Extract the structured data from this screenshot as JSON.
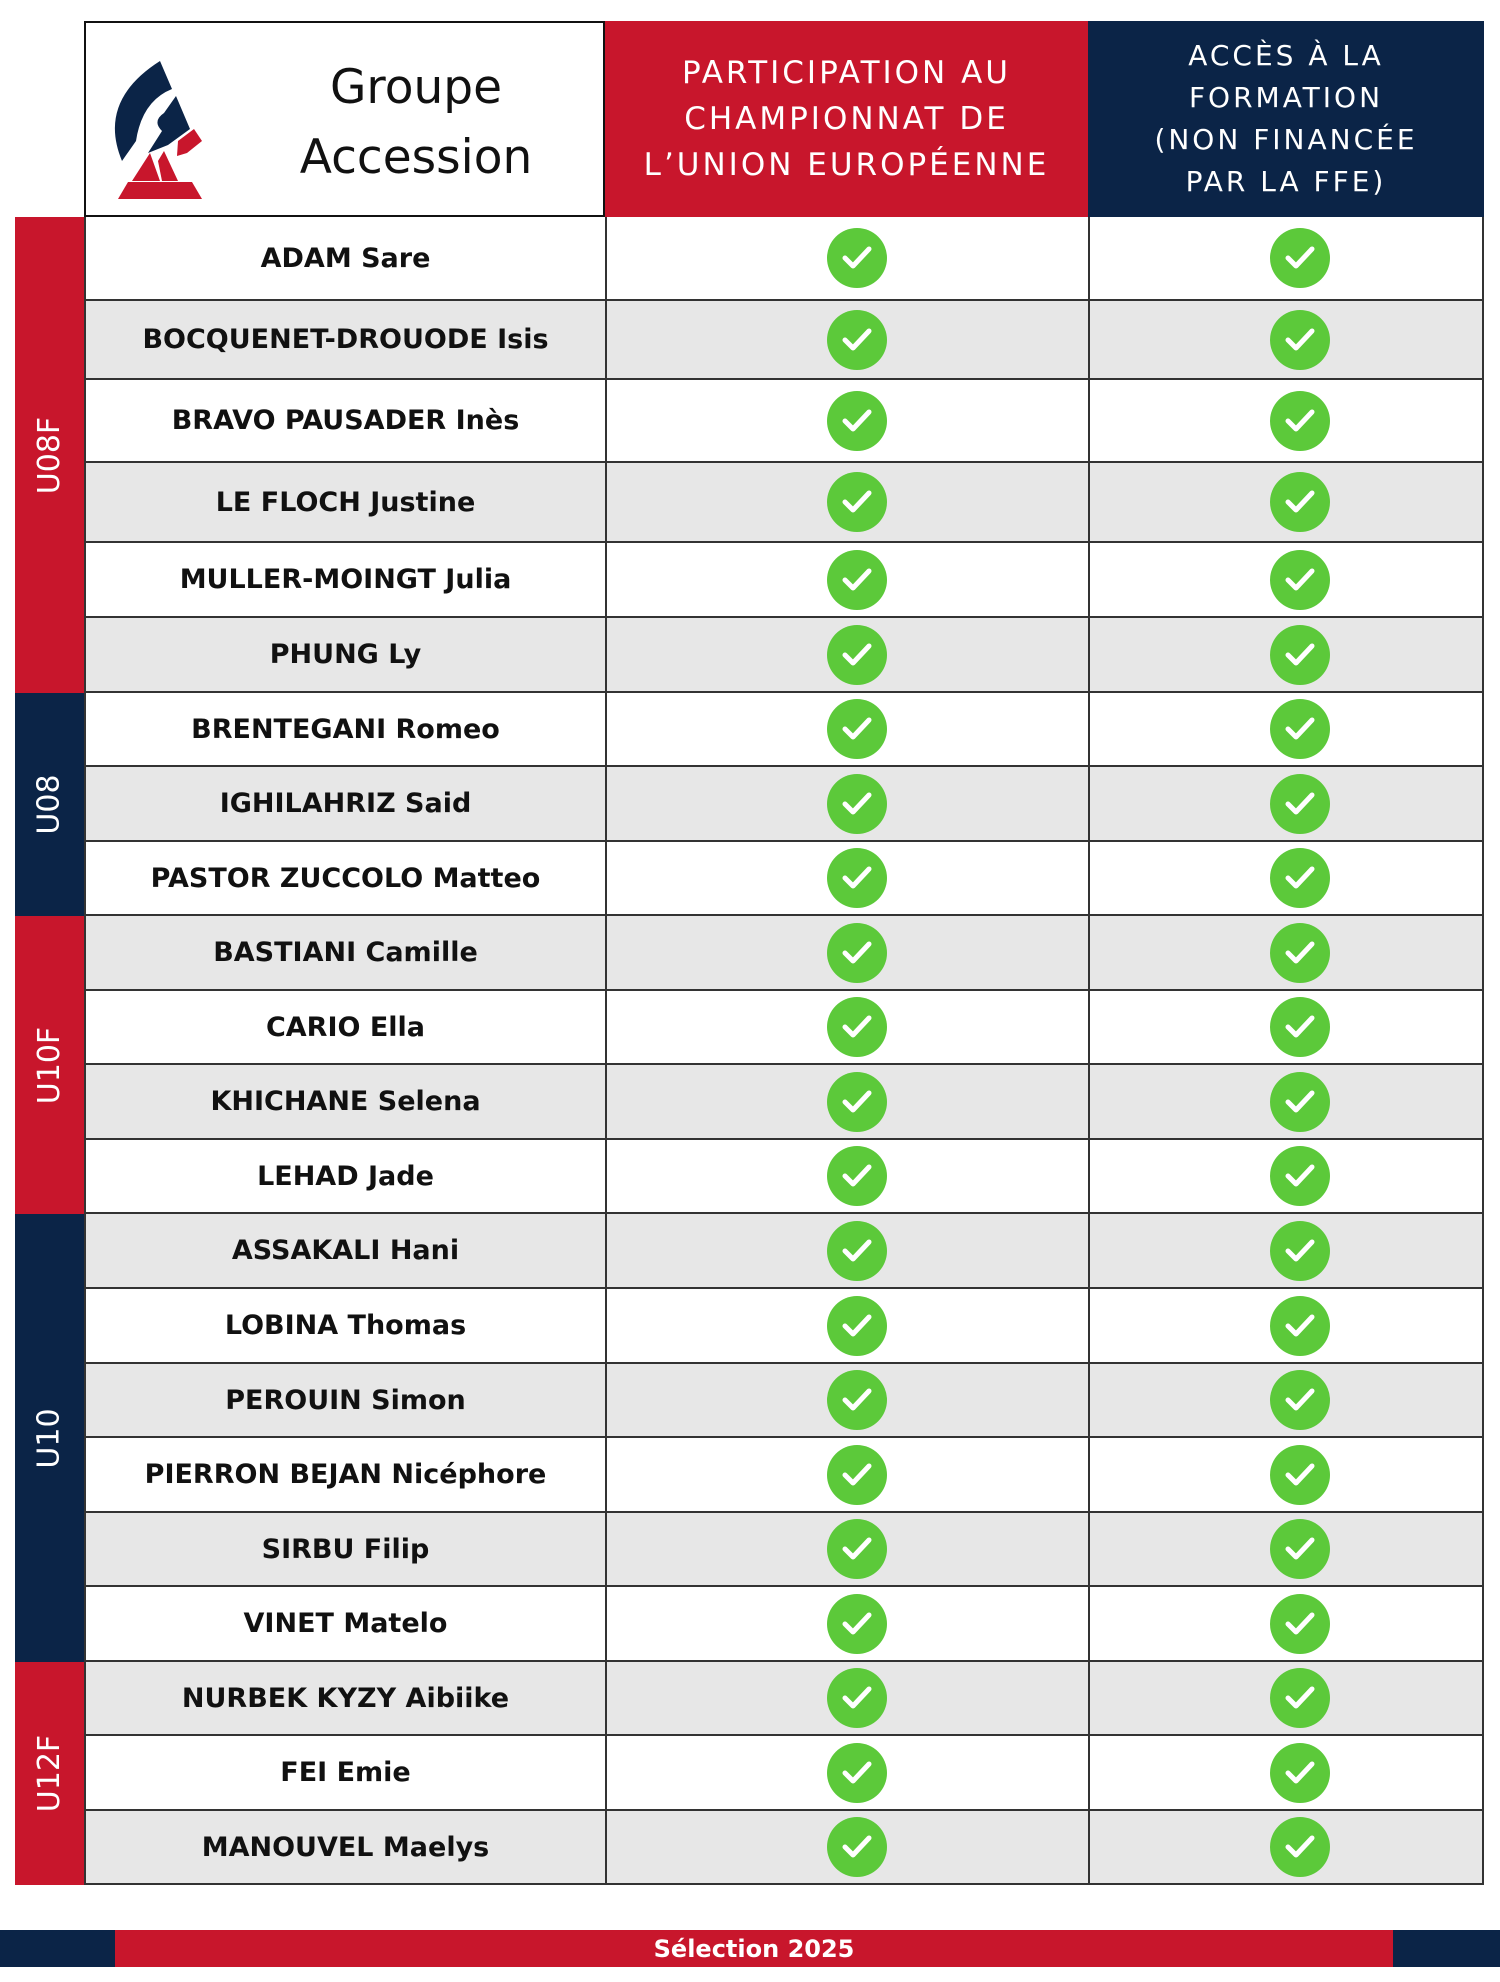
{
  "header": {
    "brand": "Groupe Accession",
    "brand_line1": "Groupe",
    "brand_line2": "Accession",
    "col1_title": "PARTICIPATION AU CHAMPIONNAT DE L'UNION EUROPÉENNE",
    "col1_lines": [
      "PARTICIPATION AU",
      "CHAMPIONNAT DE",
      "L’UNION EUROPÉENNE"
    ],
    "col2_title": "ACCÈS À LA FORMATION (NON FINANCÉE PAR LA FFE)",
    "col2_lines": [
      "ACCÈS À LA",
      "FORMATION",
      "(NON FINANCÉE",
      "PAR LA FFE)"
    ]
  },
  "colors": {
    "red": "#c8162c",
    "navy": "#0b2447",
    "check_green": "#5cc93a",
    "row_gray": "#e7e7e7"
  },
  "icons": {
    "check": "check-circle-icon",
    "logo": "ffe-logo"
  },
  "groups": [
    {
      "label": "U08F",
      "color": "red",
      "players": [
        {
          "name": "ADAM Sare",
          "championship": true,
          "training": true
        },
        {
          "name": "BOCQUENET-DROUODE Isis",
          "championship": true,
          "training": true
        },
        {
          "name": "BRAVO PAUSADER Inès",
          "championship": true,
          "training": true
        },
        {
          "name": "LE FLOCH Justine",
          "championship": true,
          "training": true
        },
        {
          "name": "MULLER-MOINGT Julia",
          "championship": true,
          "training": true
        },
        {
          "name": "PHUNG Ly",
          "championship": true,
          "training": true
        }
      ]
    },
    {
      "label": "U08",
      "color": "navy",
      "players": [
        {
          "name": "BRENTEGANI Romeo",
          "championship": true,
          "training": true
        },
        {
          "name": "IGHILAHRIZ Said",
          "championship": true,
          "training": true
        },
        {
          "name": "PASTOR ZUCCOLO Matteo",
          "championship": true,
          "training": true
        }
      ]
    },
    {
      "label": "U10F",
      "color": "red",
      "players": [
        {
          "name": "BASTIANI Camille",
          "championship": true,
          "training": true
        },
        {
          "name": "CARIO Ella",
          "championship": true,
          "training": true
        },
        {
          "name": "KHICHANE Selena",
          "championship": true,
          "training": true
        },
        {
          "name": "LEHAD Jade",
          "championship": true,
          "training": true
        }
      ]
    },
    {
      "label": "U10",
      "color": "navy",
      "players": [
        {
          "name": "ASSAKALI Hani",
          "championship": true,
          "training": true
        },
        {
          "name": "LOBINA Thomas",
          "championship": true,
          "training": true
        },
        {
          "name": "PEROUIN Simon",
          "championship": true,
          "training": true
        },
        {
          "name": "PIERRON BEJAN Nicéphore",
          "championship": true,
          "training": true
        },
        {
          "name": "SIRBU Filip",
          "championship": true,
          "training": true
        },
        {
          "name": "VINET Matelo",
          "championship": true,
          "training": true
        }
      ]
    },
    {
      "label": "U12F",
      "color": "red",
      "players": [
        {
          "name": "NURBEK KYZY Aibiike",
          "championship": true,
          "training": true
        },
        {
          "name": "FEI Emie",
          "championship": true,
          "training": true
        },
        {
          "name": "MANOUVEL Maelys",
          "championship": true,
          "training": true
        }
      ]
    }
  ],
  "footer": {
    "label": "Sélection 2025"
  }
}
